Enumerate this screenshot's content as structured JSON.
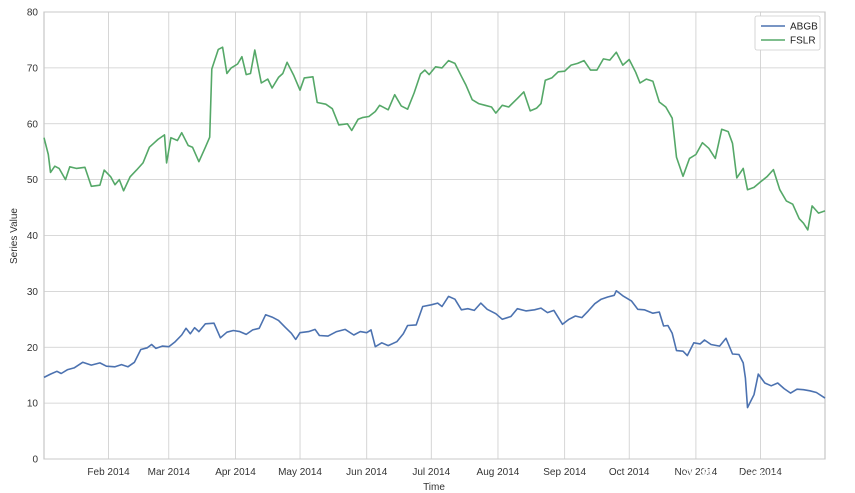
{
  "chart_data": {
    "type": "line",
    "xlabel": "Time",
    "ylabel": "Series Value",
    "x_range": [
      "2014-01-02",
      "2014-12-31"
    ],
    "ylim": [
      0,
      80
    ],
    "yticks": [
      0,
      10,
      20,
      30,
      40,
      50,
      60,
      70,
      80
    ],
    "xticks": [
      {
        "date": "2014-02-01",
        "label": "Feb 2014"
      },
      {
        "date": "2014-03-01",
        "label": "Mar 2014"
      },
      {
        "date": "2014-04-01",
        "label": "Apr 2014"
      },
      {
        "date": "2014-05-01",
        "label": "May 2014"
      },
      {
        "date": "2014-06-01",
        "label": "Jun 2014"
      },
      {
        "date": "2014-07-01",
        "label": "Jul 2014"
      },
      {
        "date": "2014-08-01",
        "label": "Aug 2014"
      },
      {
        "date": "2014-09-01",
        "label": "Sep 2014"
      },
      {
        "date": "2014-10-01",
        "label": "Oct 2014"
      },
      {
        "date": "2014-11-01",
        "label": "Nov 2014"
      },
      {
        "date": "2014-12-01",
        "label": "Dec 2014"
      }
    ],
    "grid": true,
    "legend_position": "top-right",
    "series": [
      {
        "name": "ABGB",
        "color": "#4c72b0",
        "points": [
          [
            "2014-01-02",
            14.6
          ],
          [
            "2014-01-05",
            15.2
          ],
          [
            "2014-01-08",
            15.7
          ],
          [
            "2014-01-10",
            15.3
          ],
          [
            "2014-01-13",
            16.0
          ],
          [
            "2014-01-16",
            16.3
          ],
          [
            "2014-01-20",
            17.3
          ],
          [
            "2014-01-24",
            16.8
          ],
          [
            "2014-01-28",
            17.2
          ],
          [
            "2014-01-31",
            16.6
          ],
          [
            "2014-02-04",
            16.5
          ],
          [
            "2014-02-07",
            16.9
          ],
          [
            "2014-02-10",
            16.5
          ],
          [
            "2014-02-13",
            17.3
          ],
          [
            "2014-02-16",
            19.6
          ],
          [
            "2014-02-19",
            19.9
          ],
          [
            "2014-02-21",
            20.5
          ],
          [
            "2014-02-23",
            19.8
          ],
          [
            "2014-02-26",
            20.2
          ],
          [
            "2014-03-01",
            20.1
          ],
          [
            "2014-03-04",
            21.0
          ],
          [
            "2014-03-07",
            22.2
          ],
          [
            "2014-03-09",
            23.4
          ],
          [
            "2014-03-11",
            22.4
          ],
          [
            "2014-03-13",
            23.5
          ],
          [
            "2014-03-15",
            22.8
          ],
          [
            "2014-03-18",
            24.2
          ],
          [
            "2014-03-22",
            24.3
          ],
          [
            "2014-03-25",
            21.7
          ],
          [
            "2014-03-28",
            22.7
          ],
          [
            "2014-03-31",
            23.0
          ],
          [
            "2014-04-03",
            22.8
          ],
          [
            "2014-04-06",
            22.3
          ],
          [
            "2014-04-09",
            23.1
          ],
          [
            "2014-04-12",
            23.4
          ],
          [
            "2014-04-15",
            25.8
          ],
          [
            "2014-04-18",
            25.4
          ],
          [
            "2014-04-21",
            24.8
          ],
          [
            "2014-04-24",
            23.6
          ],
          [
            "2014-04-27",
            22.5
          ],
          [
            "2014-04-29",
            21.4
          ],
          [
            "2014-05-01",
            22.6
          ],
          [
            "2014-05-05",
            22.8
          ],
          [
            "2014-05-08",
            23.2
          ],
          [
            "2014-05-10",
            22.1
          ],
          [
            "2014-05-14",
            22.0
          ],
          [
            "2014-05-18",
            22.8
          ],
          [
            "2014-05-22",
            23.2
          ],
          [
            "2014-05-26",
            22.2
          ],
          [
            "2014-05-29",
            22.8
          ],
          [
            "2014-06-01",
            22.6
          ],
          [
            "2014-06-03",
            23.1
          ],
          [
            "2014-06-05",
            20.1
          ],
          [
            "2014-06-08",
            20.8
          ],
          [
            "2014-06-11",
            20.3
          ],
          [
            "2014-06-15",
            21.0
          ],
          [
            "2014-06-18",
            22.4
          ],
          [
            "2014-06-20",
            23.9
          ],
          [
            "2014-06-24",
            24.0
          ],
          [
            "2014-06-27",
            27.3
          ],
          [
            "2014-07-01",
            27.6
          ],
          [
            "2014-07-04",
            27.9
          ],
          [
            "2014-07-06",
            27.3
          ],
          [
            "2014-07-09",
            29.1
          ],
          [
            "2014-07-12",
            28.6
          ],
          [
            "2014-07-15",
            26.7
          ],
          [
            "2014-07-18",
            26.9
          ],
          [
            "2014-07-21",
            26.6
          ],
          [
            "2014-07-24",
            27.9
          ],
          [
            "2014-07-27",
            26.8
          ],
          [
            "2014-07-31",
            26.0
          ],
          [
            "2014-08-03",
            25.0
          ],
          [
            "2014-08-07",
            25.5
          ],
          [
            "2014-08-10",
            26.9
          ],
          [
            "2014-08-14",
            26.5
          ],
          [
            "2014-08-18",
            26.7
          ],
          [
            "2014-08-21",
            27.0
          ],
          [
            "2014-08-24",
            26.2
          ],
          [
            "2014-08-27",
            26.6
          ],
          [
            "2014-08-31",
            24.1
          ],
          [
            "2014-09-03",
            25.0
          ],
          [
            "2014-09-06",
            25.6
          ],
          [
            "2014-09-09",
            25.3
          ],
          [
            "2014-09-12",
            26.5
          ],
          [
            "2014-09-15",
            27.8
          ],
          [
            "2014-09-18",
            28.6
          ],
          [
            "2014-09-21",
            29.0
          ],
          [
            "2014-09-24",
            29.3
          ],
          [
            "2014-09-25",
            30.1
          ],
          [
            "2014-09-28",
            29.2
          ],
          [
            "2014-10-02",
            28.3
          ],
          [
            "2014-10-05",
            26.8
          ],
          [
            "2014-10-08",
            26.7
          ],
          [
            "2014-10-12",
            26.1
          ],
          [
            "2014-10-15",
            26.3
          ],
          [
            "2014-10-17",
            23.8
          ],
          [
            "2014-10-19",
            23.9
          ],
          [
            "2014-10-21",
            22.5
          ],
          [
            "2014-10-23",
            19.4
          ],
          [
            "2014-10-26",
            19.3
          ],
          [
            "2014-10-28",
            18.5
          ],
          [
            "2014-10-31",
            20.8
          ],
          [
            "2014-11-03",
            20.6
          ],
          [
            "2014-11-05",
            21.3
          ],
          [
            "2014-11-08",
            20.5
          ],
          [
            "2014-11-12",
            20.2
          ],
          [
            "2014-11-15",
            21.6
          ],
          [
            "2014-11-18",
            18.8
          ],
          [
            "2014-11-21",
            18.7
          ],
          [
            "2014-11-23",
            17.2
          ],
          [
            "2014-11-24",
            14.5
          ],
          [
            "2014-11-25",
            9.2
          ],
          [
            "2014-11-28",
            11.5
          ],
          [
            "2014-11-30",
            15.2
          ],
          [
            "2014-12-03",
            13.6
          ],
          [
            "2014-12-06",
            13.1
          ],
          [
            "2014-12-09",
            13.6
          ],
          [
            "2014-12-12",
            12.6
          ],
          [
            "2014-12-15",
            11.8
          ],
          [
            "2014-12-18",
            12.5
          ],
          [
            "2014-12-21",
            12.4
          ],
          [
            "2014-12-24",
            12.2
          ],
          [
            "2014-12-27",
            11.9
          ],
          [
            "2014-12-31",
            10.9
          ]
        ]
      },
      {
        "name": "FSLR",
        "color": "#55a868",
        "points": [
          [
            "2014-01-02",
            57.5
          ],
          [
            "2014-01-04",
            54.5
          ],
          [
            "2014-01-05",
            51.3
          ],
          [
            "2014-01-07",
            52.4
          ],
          [
            "2014-01-09",
            52.0
          ],
          [
            "2014-01-12",
            50.0
          ],
          [
            "2014-01-14",
            52.3
          ],
          [
            "2014-01-17",
            52.0
          ],
          [
            "2014-01-21",
            52.2
          ],
          [
            "2014-01-24",
            48.8
          ],
          [
            "2014-01-28",
            49.0
          ],
          [
            "2014-01-30",
            51.7
          ],
          [
            "2014-02-02",
            50.5
          ],
          [
            "2014-02-04",
            49.1
          ],
          [
            "2014-02-06",
            50.0
          ],
          [
            "2014-02-08",
            48.0
          ],
          [
            "2014-02-11",
            50.5
          ],
          [
            "2014-02-14",
            51.7
          ],
          [
            "2014-02-17",
            53.0
          ],
          [
            "2014-02-20",
            55.8
          ],
          [
            "2014-02-22",
            56.5
          ],
          [
            "2014-02-24",
            57.2
          ],
          [
            "2014-02-27",
            58.0
          ],
          [
            "2014-02-28",
            53.0
          ],
          [
            "2014-03-02",
            57.5
          ],
          [
            "2014-03-05",
            57.0
          ],
          [
            "2014-03-07",
            58.4
          ],
          [
            "2014-03-10",
            56.1
          ],
          [
            "2014-03-12",
            55.8
          ],
          [
            "2014-03-15",
            53.2
          ],
          [
            "2014-03-18",
            55.8
          ],
          [
            "2014-03-20",
            57.6
          ],
          [
            "2014-03-21",
            69.8
          ],
          [
            "2014-03-24",
            73.3
          ],
          [
            "2014-03-26",
            73.7
          ],
          [
            "2014-03-28",
            69.0
          ],
          [
            "2014-03-30",
            70.0
          ],
          [
            "2014-04-02",
            70.7
          ],
          [
            "2014-04-04",
            72.0
          ],
          [
            "2014-04-06",
            68.8
          ],
          [
            "2014-04-08",
            69.0
          ],
          [
            "2014-04-10",
            73.2
          ],
          [
            "2014-04-13",
            67.3
          ],
          [
            "2014-04-16",
            68.0
          ],
          [
            "2014-04-18",
            66.4
          ],
          [
            "2014-04-21",
            68.3
          ],
          [
            "2014-04-23",
            69.0
          ],
          [
            "2014-04-25",
            71.0
          ],
          [
            "2014-04-28",
            68.7
          ],
          [
            "2014-05-01",
            66.0
          ],
          [
            "2014-05-03",
            68.2
          ],
          [
            "2014-05-07",
            68.4
          ],
          [
            "2014-05-09",
            63.8
          ],
          [
            "2014-05-13",
            63.5
          ],
          [
            "2014-05-16",
            62.7
          ],
          [
            "2014-05-19",
            59.8
          ],
          [
            "2014-05-23",
            60.0
          ],
          [
            "2014-05-25",
            58.8
          ],
          [
            "2014-05-28",
            60.8
          ],
          [
            "2014-05-30",
            61.1
          ],
          [
            "2014-06-02",
            61.3
          ],
          [
            "2014-06-05",
            62.2
          ],
          [
            "2014-06-07",
            63.3
          ],
          [
            "2014-06-11",
            62.5
          ],
          [
            "2014-06-14",
            65.2
          ],
          [
            "2014-06-17",
            63.2
          ],
          [
            "2014-06-20",
            62.6
          ],
          [
            "2014-06-23",
            65.5
          ],
          [
            "2014-06-26",
            68.9
          ],
          [
            "2014-06-28",
            69.6
          ],
          [
            "2014-06-30",
            68.8
          ],
          [
            "2014-07-03",
            70.2
          ],
          [
            "2014-07-06",
            70.0
          ],
          [
            "2014-07-09",
            71.3
          ],
          [
            "2014-07-12",
            70.8
          ],
          [
            "2014-07-15",
            68.5
          ],
          [
            "2014-07-17",
            67.0
          ],
          [
            "2014-07-20",
            64.3
          ],
          [
            "2014-07-23",
            63.6
          ],
          [
            "2014-07-26",
            63.3
          ],
          [
            "2014-07-29",
            63.0
          ],
          [
            "2014-07-31",
            61.9
          ],
          [
            "2014-08-03",
            63.3
          ],
          [
            "2014-08-06",
            63.0
          ],
          [
            "2014-08-10",
            64.5
          ],
          [
            "2014-08-13",
            65.7
          ],
          [
            "2014-08-16",
            62.3
          ],
          [
            "2014-08-19",
            62.8
          ],
          [
            "2014-08-21",
            63.6
          ],
          [
            "2014-08-23",
            67.8
          ],
          [
            "2014-08-26",
            68.2
          ],
          [
            "2014-08-29",
            69.3
          ],
          [
            "2014-09-01",
            69.4
          ],
          [
            "2014-09-04",
            70.5
          ],
          [
            "2014-09-07",
            70.8
          ],
          [
            "2014-09-10",
            71.3
          ],
          [
            "2014-09-13",
            69.6
          ],
          [
            "2014-09-16",
            69.6
          ],
          [
            "2014-09-19",
            71.6
          ],
          [
            "2014-09-22",
            71.4
          ],
          [
            "2014-09-25",
            72.8
          ],
          [
            "2014-09-28",
            70.5
          ],
          [
            "2014-10-01",
            71.5
          ],
          [
            "2014-10-04",
            69.2
          ],
          [
            "2014-10-06",
            67.3
          ],
          [
            "2014-10-09",
            68.0
          ],
          [
            "2014-10-12",
            67.6
          ],
          [
            "2014-10-15",
            63.9
          ],
          [
            "2014-10-18",
            63.0
          ],
          [
            "2014-10-21",
            61.0
          ],
          [
            "2014-10-23",
            54.0
          ],
          [
            "2014-10-26",
            50.6
          ],
          [
            "2014-10-29",
            53.8
          ],
          [
            "2014-11-01",
            54.5
          ],
          [
            "2014-11-04",
            56.6
          ],
          [
            "2014-11-07",
            55.6
          ],
          [
            "2014-11-10",
            53.8
          ],
          [
            "2014-11-13",
            59.0
          ],
          [
            "2014-11-16",
            58.6
          ],
          [
            "2014-11-18",
            56.5
          ],
          [
            "2014-11-20",
            50.3
          ],
          [
            "2014-11-23",
            52.0
          ],
          [
            "2014-11-25",
            48.2
          ],
          [
            "2014-11-28",
            48.6
          ],
          [
            "2014-12-01",
            49.6
          ],
          [
            "2014-12-04",
            50.5
          ],
          [
            "2014-12-07",
            51.8
          ],
          [
            "2014-12-10",
            48.2
          ],
          [
            "2014-12-13",
            46.2
          ],
          [
            "2014-12-16",
            45.6
          ],
          [
            "2014-12-19",
            43.0
          ],
          [
            "2014-12-21",
            42.2
          ],
          [
            "2014-12-23",
            41.0
          ],
          [
            "2014-12-25",
            45.3
          ],
          [
            "2014-12-28",
            44.0
          ],
          [
            "2014-12-31",
            44.4
          ]
        ]
      }
    ]
  },
  "watermark": {
    "text": "头条号 / quantnews"
  }
}
